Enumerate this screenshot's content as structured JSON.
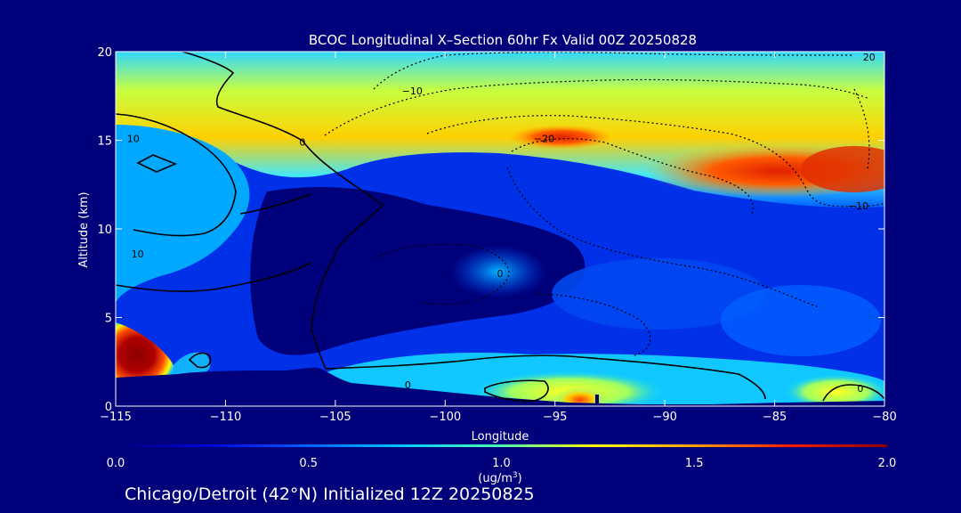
{
  "chart_data": {
    "type": "heatmap",
    "title": "BCOC Longitudinal X–Section 60hr  Fx Valid 00Z 20250828",
    "xlabel": "Longitude",
    "ylabel": "Altitude (km)",
    "xlim": [
      -115,
      -80
    ],
    "ylim": [
      0,
      20
    ],
    "x_ticks": [
      -115,
      -110,
      -105,
      -100,
      -95,
      -90,
      -85,
      -80
    ],
    "x_tick_labels": [
      "−115",
      "−110",
      "−105",
      "−100",
      "−95",
      "−90",
      "−85",
      "−80"
    ],
    "y_ticks": [
      0,
      5,
      10,
      15,
      20
    ],
    "y_tick_labels": [
      "0",
      "5",
      "10",
      "15",
      "20"
    ],
    "colorbar": {
      "min": 0.0,
      "max": 2.0,
      "ticks": [
        "0.0",
        "0.5",
        "1.0",
        "1.5",
        "2.0"
      ],
      "tick_values": [
        0.0,
        0.5,
        1.0,
        1.5,
        2.0
      ],
      "unit_label": "(ug/m",
      "unit_sup": "3",
      "unit_close": ")"
    },
    "contour_labels": [
      {
        "text": "10",
        "lon": -114.2,
        "alt": 15.1
      },
      {
        "text": "0",
        "lon": -106.5,
        "alt": 14.9
      },
      {
        "text": "−10",
        "lon": -101.5,
        "alt": 17.8
      },
      {
        "text": "−20",
        "lon": -95.5,
        "alt": 15.1
      },
      {
        "text": "20",
        "lon": -80.7,
        "alt": 19.7
      },
      {
        "text": "−10",
        "lon": -81.2,
        "alt": 11.3
      },
      {
        "text": "10",
        "lon": -114.0,
        "alt": 8.6
      },
      {
        "text": "0",
        "lon": -97.5,
        "alt": 7.5
      },
      {
        "text": "0",
        "lon": -101.7,
        "alt": 1.2
      },
      {
        "text": "0",
        "lon": -81.1,
        "alt": 1.0
      }
    ],
    "field_features": [
      {
        "lon": -89.0,
        "alt": 15.0,
        "value": 1.5
      },
      {
        "lon": -82.5,
        "alt": 13.5,
        "value": 1.8
      },
      {
        "lon": -94.0,
        "alt": 15.0,
        "value": 1.5
      },
      {
        "lon": -114.3,
        "alt": 2.7,
        "value": 2.0
      },
      {
        "lon": -94.0,
        "alt": 0.6,
        "value": 1.4
      },
      {
        "lon": -100.0,
        "alt": 18.0,
        "value": 0.8
      },
      {
        "lon": -113.0,
        "alt": 17.5,
        "value": 1.0
      },
      {
        "lon": -102.0,
        "alt": 10.5,
        "value": 0.0
      }
    ]
  },
  "footer": {
    "location": "Chicago/Detroit (42°N) Initialized 12Z 20250825"
  }
}
